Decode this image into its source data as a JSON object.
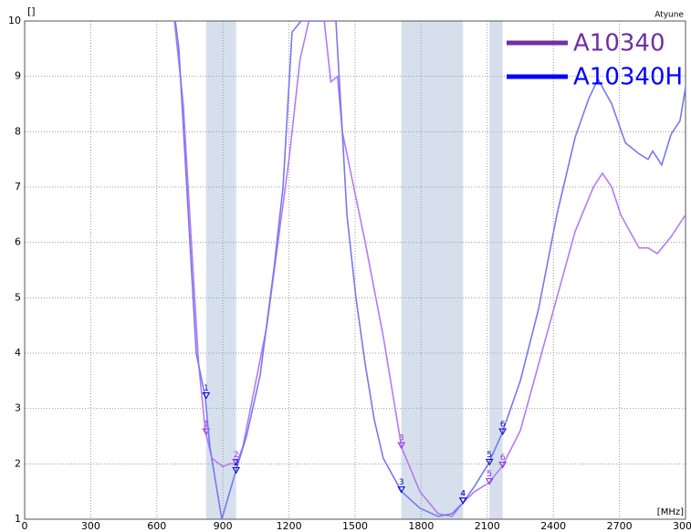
{
  "chart_data": {
    "type": "line",
    "y_unit_label": "[]",
    "top_right_label": "Atyune",
    "x_unit_label": "[MHz]",
    "xlim": [
      0,
      3000
    ],
    "ylim": [
      1,
      10
    ],
    "xticks": [
      0,
      300,
      600,
      900,
      1200,
      1500,
      1800,
      2100,
      2400,
      2700,
      3000
    ],
    "yticks": [
      1,
      2,
      3,
      4,
      5,
      6,
      7,
      8,
      9,
      10
    ],
    "grid": true,
    "legend": "top-right",
    "bands": [
      [
        824,
        960
      ],
      [
        1710,
        1990
      ],
      [
        2110,
        2170
      ]
    ],
    "band_color": "#d5e0ec",
    "marker_labels": [
      "1",
      "2",
      "3",
      "4",
      "5",
      "6"
    ],
    "series": [
      {
        "name": "A10340",
        "color": "#7030a0",
        "line_color": "#b67af2",
        "highlight_color": "#8a2be2",
        "x": [
          680,
          720,
          760,
          790,
          820,
          850,
          900,
          930,
          960,
          990,
          1050,
          1100,
          1150,
          1200,
          1250,
          1290,
          1360,
          1390,
          1420,
          1442,
          1546,
          1628,
          1711,
          1794,
          1877,
          1940,
          1990,
          2043,
          2105,
          2167,
          2250,
          2333,
          2416,
          2499,
          2582,
          2623,
          2665,
          2706,
          2789,
          2830,
          2872,
          2934,
          3000
        ],
        "values": [
          10,
          8.5,
          5.8,
          3.8,
          2.6,
          2.1,
          1.95,
          2.0,
          2.0,
          2.3,
          3.5,
          4.5,
          6.0,
          7.5,
          9.3,
          10,
          10,
          8.9,
          9.0,
          8.0,
          6.0,
          4.3,
          2.3,
          1.5,
          1.1,
          1.05,
          1.3,
          1.5,
          1.65,
          1.95,
          2.6,
          3.8,
          5.0,
          6.2,
          7.0,
          7.25,
          7.0,
          6.5,
          5.9,
          5.9,
          5.8,
          6.1,
          6.5
        ],
        "marker_x": [
          824,
          960,
          1710,
          1990,
          2110,
          2170
        ],
        "marker_values": [
          2.55,
          2.0,
          2.3,
          1.3,
          1.65,
          1.95
        ]
      },
      {
        "name": "A10340H",
        "color": "#0000ff",
        "line_color": "#7878f0",
        "highlight_color": "#0000d0",
        "x": [
          684,
          700,
          779,
          820,
          841,
          895,
          957,
          1007,
          1069,
          1131,
          1173,
          1214,
          1255,
          1413,
          1442,
          1463,
          1504,
          1546,
          1587,
          1628,
          1711,
          1794,
          1877,
          1940,
          1990,
          2043,
          2105,
          2167,
          2250,
          2333,
          2416,
          2499,
          2561,
          2603,
          2665,
          2727,
          2789,
          2830,
          2851,
          2892,
          2934,
          2975,
          3000
        ],
        "values": [
          10,
          9.5,
          4.0,
          3.2,
          2.3,
          1.0,
          1.85,
          2.5,
          3.6,
          5.5,
          7.0,
          9.8,
          10,
          10,
          8.0,
          6.5,
          5.0,
          3.8,
          2.8,
          2.1,
          1.5,
          1.2,
          1.05,
          1.1,
          1.3,
          1.6,
          2.0,
          2.55,
          3.5,
          4.8,
          6.5,
          7.9,
          8.6,
          8.95,
          8.5,
          7.8,
          7.6,
          7.5,
          7.65,
          7.4,
          7.95,
          8.2,
          8.8
        ],
        "marker_x": [
          824,
          960,
          1710,
          1990,
          2110,
          2170
        ],
        "marker_values": [
          3.2,
          1.85,
          1.5,
          1.3,
          2.0,
          2.55
        ]
      }
    ]
  }
}
